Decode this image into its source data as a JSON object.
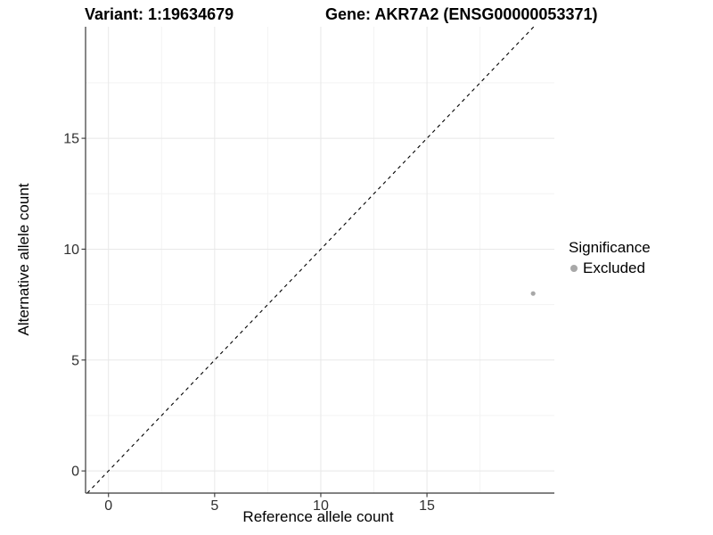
{
  "page": {
    "background": "#ffffff"
  },
  "header": {
    "variant_title": "Variant: 1:19634679",
    "gene_title": "Gene: AKR7A2 (ENSG00000053371)"
  },
  "chart_data": {
    "type": "scatter",
    "title_left": "Variant: 1:19634679",
    "title_right": "Gene: AKR7A2 (ENSG00000053371)",
    "xlabel": "Reference allele count",
    "ylabel": "Alternative allele count",
    "xlim": [
      -1.08,
      21.0
    ],
    "ylim": [
      -1.0,
      20.03
    ],
    "x_ticks": [
      0,
      5,
      10,
      15
    ],
    "y_ticks": [
      0,
      5,
      10,
      15
    ],
    "grid_minor": [
      2.5,
      7.5,
      12.5,
      17.5
    ],
    "grid": true,
    "legend_position": "right",
    "series": [
      {
        "name": "Excluded",
        "color": "#a8a8a8",
        "points": [
          {
            "x": 20,
            "y": 8
          }
        ]
      }
    ],
    "reference_line": {
      "slope": 1,
      "intercept": 0,
      "style": "dashed",
      "color": "#000000"
    }
  },
  "legend": {
    "title": "Significance",
    "items": [
      {
        "label": "Excluded",
        "color": "#a8a8a8"
      }
    ]
  },
  "colors": {
    "point": "#a8a8a8",
    "grid_major": "#e8e8e8",
    "grid_minor": "#f3f3f3",
    "axis": "#383838",
    "tick_text": "#303030",
    "ref_line": "#000000"
  }
}
